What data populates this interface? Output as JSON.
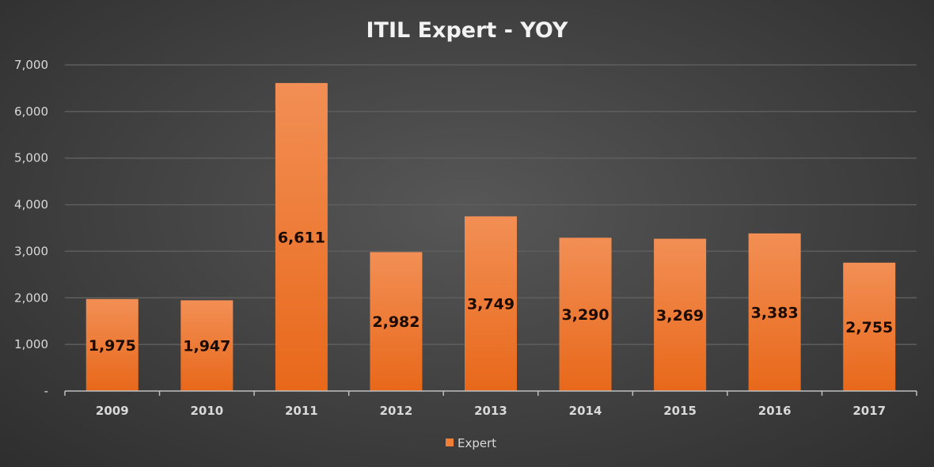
{
  "chart_data": {
    "type": "bar",
    "title": "ITIL Expert - YOY",
    "categories": [
      "2009",
      "2010",
      "2011",
      "2012",
      "2013",
      "2014",
      "2015",
      "2016",
      "2017"
    ],
    "series": [
      {
        "name": "Expert",
        "values": [
          1975,
          1947,
          6611,
          2982,
          3749,
          3290,
          3269,
          3383,
          2755
        ]
      }
    ],
    "data_labels": [
      "1,975",
      "1,947",
      "6,611",
      "2,982",
      "3,749",
      "3,290",
      "3,269",
      "3,383",
      "2,755"
    ],
    "ylim": [
      0,
      7000
    ],
    "yticks": [
      0,
      1000,
      2000,
      3000,
      4000,
      5000,
      6000,
      7000
    ],
    "ytick_labels": [
      "-",
      "1,000",
      "2,000",
      "3,000",
      "4,000",
      "5,000",
      "6,000",
      "7,000"
    ],
    "grid": true,
    "legend_position": "bottom",
    "colors": {
      "bar_top": "#f28f55",
      "bar_bottom": "#e8681a",
      "grid": "#5e5e5e",
      "axis": "#bfbfbf"
    }
  }
}
